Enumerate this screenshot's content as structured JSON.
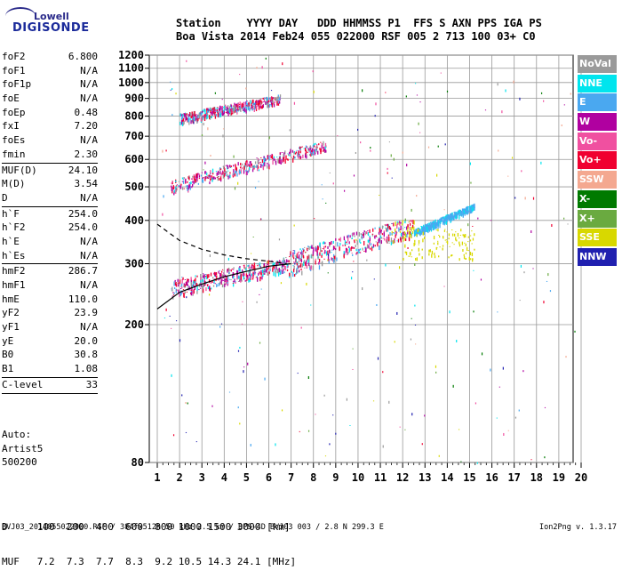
{
  "logo": {
    "line1": "Lowell",
    "line2": "DIGISONDE"
  },
  "header": {
    "line1": "Station    YYYY DAY   DDD HHMMSS P1  FFS S AXN PPS IGA PS",
    "line2": "Boa Vista 2014 Feb24 055 022000 RSF 005 2 713 100 03+ C0"
  },
  "params_groups": [
    [
      [
        "foF2",
        "6.800"
      ],
      [
        "foF1",
        "N/A"
      ],
      [
        "foF1p",
        "N/A"
      ],
      [
        "foE",
        "N/A"
      ],
      [
        "foEp",
        "0.48"
      ],
      [
        "fxI",
        "7.20"
      ],
      [
        "foEs",
        "N/A"
      ],
      [
        "fmin",
        "2.30"
      ]
    ],
    [
      [
        "MUF(D)",
        "24.10"
      ],
      [
        "M(D)",
        "3.54"
      ],
      [
        "D",
        "N/A"
      ]
    ],
    [
      [
        "h`F",
        "254.0"
      ],
      [
        "h`F2",
        "254.0"
      ],
      [
        "h`E",
        "N/A"
      ],
      [
        "h`Es",
        "N/A"
      ]
    ],
    [
      [
        "hmF2",
        "286.7"
      ],
      [
        "hmF1",
        "N/A"
      ],
      [
        "hmE",
        "110.0"
      ],
      [
        "yF2",
        "23.9"
      ],
      [
        "yF1",
        "N/A"
      ],
      [
        "yE",
        "20.0"
      ],
      [
        "B0",
        "30.8"
      ],
      [
        "B1",
        "1.08"
      ]
    ],
    [
      [
        "C-level",
        "33"
      ]
    ]
  ],
  "auto": {
    "line1": "Auto:",
    "line2": "Artist5",
    "line3": "500200"
  },
  "d_muf": {
    "d_label": "D",
    "d_values": "100  200  400  600  800 1000 1500 3000 [km]",
    "muf_label": "MUF",
    "muf_values": "7.2  7.3  7.7  8.3  9.2 10.5 14.3 24.1 [MHz]"
  },
  "footer": {
    "text": "BVJ03_2014055022000.RSF / 384fx512h 50 kHz 2.5 km / DPS-4D BVJ03 003 / 2.8 N 299.3 E",
    "version": "Ion2Png v. 1.3.17"
  },
  "legend": [
    {
      "label": "NoVal",
      "color": "#9a9a9a"
    },
    {
      "label": "NNE",
      "color": "#00e5ee"
    },
    {
      "label": "E",
      "color": "#4aa8f0"
    },
    {
      "label": "W",
      "color": "#b000a0"
    },
    {
      "label": "Vo-",
      "color": "#f050a0"
    },
    {
      "label": "Vo+",
      "color": "#f00030"
    },
    {
      "label": "SSW",
      "color": "#f4a890"
    },
    {
      "label": "X-",
      "color": "#007a00"
    },
    {
      "label": "X+",
      "color": "#6aaa40"
    },
    {
      "label": "SSE",
      "color": "#d8d800"
    },
    {
      "label": "NNW",
      "color": "#2020b0"
    }
  ],
  "chart_data": {
    "type": "scatter",
    "title": "",
    "xlabel": "",
    "ylabel": "",
    "xlim": [
      1,
      20
    ],
    "ylim": [
      80,
      1200
    ],
    "x_ticks": [
      "1",
      "2",
      "3",
      "4",
      "5",
      "6",
      "7",
      "8",
      "9",
      "10",
      "11",
      "12",
      "13",
      "14",
      "15",
      "16",
      "17",
      "18",
      "19",
      "20"
    ],
    "y_ticks": [
      "80",
      "200",
      "300",
      "400",
      "500",
      "600",
      "700",
      "800",
      "900",
      "1000",
      "1100",
      "1200"
    ],
    "y_tick_values": [
      80,
      200,
      300,
      400,
      500,
      600,
      700,
      800,
      900,
      1000,
      1100,
      1200
    ],
    "grid": true,
    "y_scale": "log",
    "traces": [
      {
        "name": "F trace 1st hop",
        "x": [
          1.6,
          6.8
        ],
        "y": [
          255,
          300
        ],
        "spread": 15
      },
      {
        "name": "F trace 1st hop (extended)",
        "x": [
          6.8,
          12.5
        ],
        "y": [
          300,
          385
        ],
        "spread": 25
      },
      {
        "name": "X trace",
        "x": [
          12.5,
          15.2
        ],
        "y": [
          370,
          440
        ],
        "spread": 8
      },
      {
        "name": "2nd hop",
        "x": [
          1.6,
          8.6
        ],
        "y": [
          500,
          660
        ],
        "spread": 22
      },
      {
        "name": "3rd hop",
        "x": [
          2.0,
          6.5
        ],
        "y": [
          790,
          900
        ],
        "spread": 25
      }
    ],
    "profile_curves": [
      {
        "name": "solid",
        "x": [
          1,
          2,
          3,
          4,
          5,
          6,
          7
        ],
        "y": [
          222,
          248,
          262,
          275,
          285,
          295,
          300
        ]
      },
      {
        "name": "dashed",
        "x": [
          1,
          2,
          3,
          4,
          5,
          6,
          6.8
        ],
        "y": [
          390,
          350,
          330,
          318,
          310,
          305,
          300
        ]
      }
    ]
  }
}
